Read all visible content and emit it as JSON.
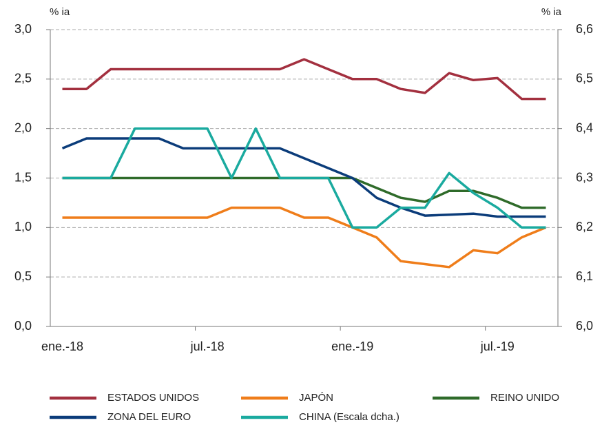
{
  "chart_data": {
    "type": "line",
    "y_label": "% ia",
    "y2_label": "% ia",
    "categories": [
      "ene.-18",
      null,
      null,
      null,
      null,
      null,
      "jul.-18",
      null,
      null,
      null,
      null,
      null,
      "ene.-19",
      null,
      null,
      null,
      null,
      null,
      "jul.-19",
      null,
      null
    ],
    "ylim": [
      0,
      3
    ],
    "yticks": [
      {
        "value": 0,
        "label": "0,0"
      },
      {
        "value": 0.5,
        "label": "0,5"
      },
      {
        "value": 1,
        "label": "1,0"
      },
      {
        "value": 1.5,
        "label": "1,5"
      },
      {
        "value": 2,
        "label": "2,0"
      },
      {
        "value": 2.5,
        "label": "2,5"
      },
      {
        "value": 3,
        "label": "3,0"
      }
    ],
    "y2lim": [
      6.0,
      6.6
    ],
    "y2ticks": [
      {
        "value": 6.0,
        "label": "6,0"
      },
      {
        "value": 6.1,
        "label": "6,1"
      },
      {
        "value": 6.2,
        "label": "6,2"
      },
      {
        "value": 6.3,
        "label": "6,3"
      },
      {
        "value": 6.4,
        "label": "6,4"
      },
      {
        "value": 6.5,
        "label": "6,5"
      },
      {
        "value": 6.6,
        "label": "6,6"
      }
    ],
    "grid": true,
    "legend": "bottom",
    "series": [
      {
        "name": "ESTADOS UNIDOS",
        "color": "#a3303f",
        "values": [
          2.4,
          2.4,
          2.6,
          2.6,
          2.6,
          2.6,
          2.6,
          2.6,
          2.6,
          2.6,
          2.7,
          2.6,
          2.5,
          2.5,
          2.4,
          2.36,
          2.56,
          2.49,
          2.51,
          2.3,
          2.3
        ]
      },
      {
        "name": "JAPÓN",
        "color": "#ef7d1a",
        "values": [
          1.1,
          1.1,
          1.1,
          1.1,
          1.1,
          1.1,
          1.1,
          1.2,
          1.2,
          1.2,
          1.1,
          1.1,
          1.0,
          0.9,
          0.66,
          0.63,
          0.6,
          0.77,
          0.74,
          0.9,
          1.0
        ]
      },
      {
        "name": "REINO UNIDO",
        "color": "#2f6b2a",
        "values": [
          1.5,
          1.5,
          1.5,
          1.5,
          1.5,
          1.5,
          1.5,
          1.5,
          1.5,
          1.5,
          1.5,
          1.5,
          1.5,
          1.4,
          1.3,
          1.26,
          1.37,
          1.37,
          1.3,
          1.2,
          1.2
        ]
      },
      {
        "name": "ZONA DEL EURO",
        "color": "#0b3c7a",
        "values": [
          1.8,
          1.9,
          1.9,
          1.9,
          1.9,
          1.8,
          1.8,
          1.8,
          1.8,
          1.8,
          1.7,
          1.6,
          1.5,
          1.3,
          1.2,
          1.12,
          1.13,
          1.14,
          1.11,
          1.11,
          1.11
        ]
      },
      {
        "name": "CHINA (Escala dcha.)",
        "color": "#1aaa9f",
        "axis": "y2",
        "values": [
          6.3,
          6.3,
          6.3,
          6.4,
          6.4,
          6.4,
          6.4,
          6.3,
          6.4,
          6.3,
          6.3,
          6.3,
          6.2,
          6.2,
          6.24,
          6.24,
          6.31,
          6.27,
          6.24,
          6.2,
          6.2
        ]
      }
    ]
  }
}
